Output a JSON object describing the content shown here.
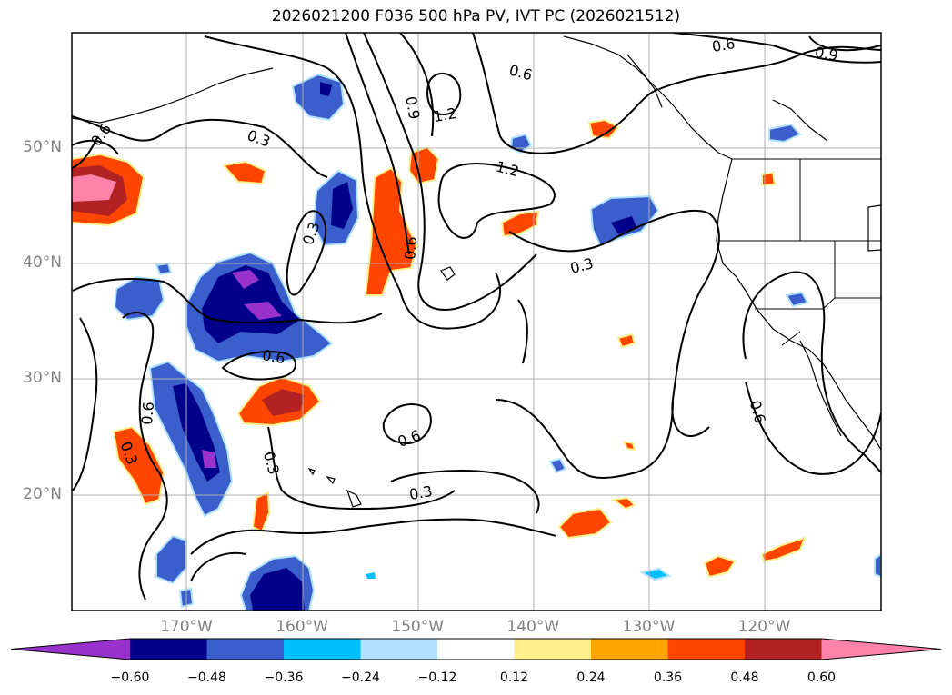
{
  "title": "2026021200 F036 500 hPa PV, IVT PC (2026021512)",
  "map": {
    "lat_labels": [
      {
        "lat": 50,
        "label": "50°N"
      },
      {
        "lat": 40,
        "label": "40°N"
      },
      {
        "lat": 30,
        "label": "30°N"
      },
      {
        "lat": 20,
        "label": "20°N"
      }
    ],
    "lon_labels": [
      {
        "lon": -170,
        "label": "170°W"
      },
      {
        "lon": -160,
        "label": "160°W"
      },
      {
        "lon": -150,
        "label": "150°W"
      },
      {
        "lon": -140,
        "label": "140°W"
      },
      {
        "lon": -130,
        "label": "130°W"
      },
      {
        "lon": -120,
        "label": "120°W"
      }
    ],
    "contour_labels": [
      "0.6",
      "0.3",
      "0.9",
      "1.2",
      "0.6",
      "1.2",
      "0.3",
      "0.6",
      "0.3",
      "0.6",
      "0.6",
      "0.3",
      "0.3",
      "0.6",
      "0.3",
      "0.6",
      "0.6",
      "0.9"
    ]
  },
  "colorbar": {
    "ticks": [
      "−0.60",
      "−0.48",
      "−0.36",
      "−0.24",
      "−0.12",
      "0.12",
      "0.24",
      "0.36",
      "0.48",
      "0.60"
    ],
    "colors": [
      "#9932cc",
      "#00008b",
      "#3a5fcd",
      "#00bfff",
      "#b0e2ff",
      "#ffffff",
      "#fff08c",
      "#ffa500",
      "#ff4500",
      "#b22222",
      "#ff82ab"
    ]
  }
}
